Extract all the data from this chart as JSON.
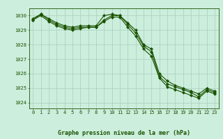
{
  "title": "Graphe pression niveau de la mer (hPa)",
  "bg_color": "#cceedd",
  "grid_color": "#aaccbb",
  "line_color": "#1a5200",
  "xlim_min": -0.5,
  "xlim_max": 23.5,
  "ylim_min": 1023.6,
  "ylim_max": 1030.5,
  "yticks": [
    1024,
    1025,
    1026,
    1027,
    1028,
    1029,
    1030
  ],
  "xticks": [
    0,
    1,
    2,
    3,
    4,
    5,
    6,
    7,
    8,
    9,
    10,
    11,
    12,
    13,
    14,
    15,
    16,
    17,
    18,
    19,
    20,
    21,
    22,
    23
  ],
  "series1": [
    1029.8,
    1030.1,
    1029.8,
    1029.5,
    1029.3,
    1029.2,
    1029.3,
    1029.3,
    1029.3,
    1030.0,
    1030.1,
    1030.0,
    1029.5,
    1029.0,
    1028.0,
    1027.7,
    1026.0,
    1025.5,
    1025.2,
    1025.0,
    1024.8,
    1024.6,
    1025.0,
    1024.8
  ],
  "series2": [
    1029.7,
    1030.1,
    1029.7,
    1029.4,
    1029.2,
    1029.1,
    1029.2,
    1029.2,
    1029.2,
    1029.7,
    1030.0,
    1030.0,
    1029.4,
    1028.8,
    1027.9,
    1027.5,
    1025.8,
    1025.3,
    1025.1,
    1024.9,
    1024.7,
    1024.4,
    1024.9,
    1024.7
  ],
  "series3": [
    1029.7,
    1030.0,
    1029.6,
    1029.3,
    1029.1,
    1029.0,
    1029.1,
    1029.2,
    1029.2,
    1029.6,
    1029.9,
    1029.9,
    1029.2,
    1028.6,
    1027.7,
    1027.2,
    1025.7,
    1025.1,
    1024.9,
    1024.7,
    1024.5,
    1024.3,
    1024.8,
    1024.6
  ],
  "tick_fontsize": 5.0,
  "label_fontsize": 6.0,
  "marker_size": 2.2,
  "line_width": 0.8
}
